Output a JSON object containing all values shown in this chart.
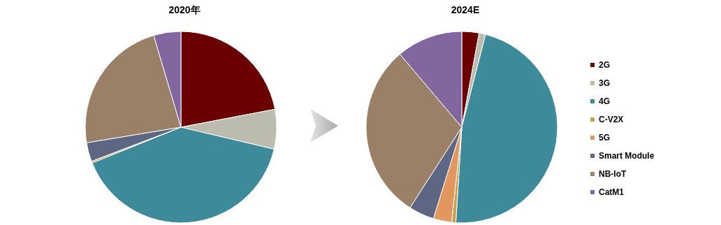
{
  "chart_data": [
    {
      "type": "pie",
      "title": "2020年",
      "categories": [
        null,
        null,
        null,
        null,
        null,
        null,
        null,
        null
      ],
      "values": [
        22,
        6.7,
        40.2,
        0.3,
        0,
        3.2,
        23,
        4.6
      ],
      "colors": [
        "#6b0000",
        "#bcbcae",
        "#3d8a9b",
        "#c9a24f",
        "#e3975f",
        "#5d6783",
        "#9a8067",
        "#8166a0"
      ],
      "legend": false
    },
    {
      "type": "pie",
      "title": "2024E",
      "categories": [
        "2G",
        "3G",
        "4G",
        "C-V2X",
        "5G",
        "Smart Module",
        "NB-IoT",
        "CatM1"
      ],
      "values": [
        2.9,
        1.1,
        47,
        0.7,
        3.1,
        4.3,
        29.7,
        11.2
      ],
      "colors": [
        "#6b0000",
        "#bcbcae",
        "#3d8a9b",
        "#c9a24f",
        "#e3975f",
        "#5d6783",
        "#9a8067",
        "#8166a0"
      ],
      "legend": "right"
    }
  ]
}
